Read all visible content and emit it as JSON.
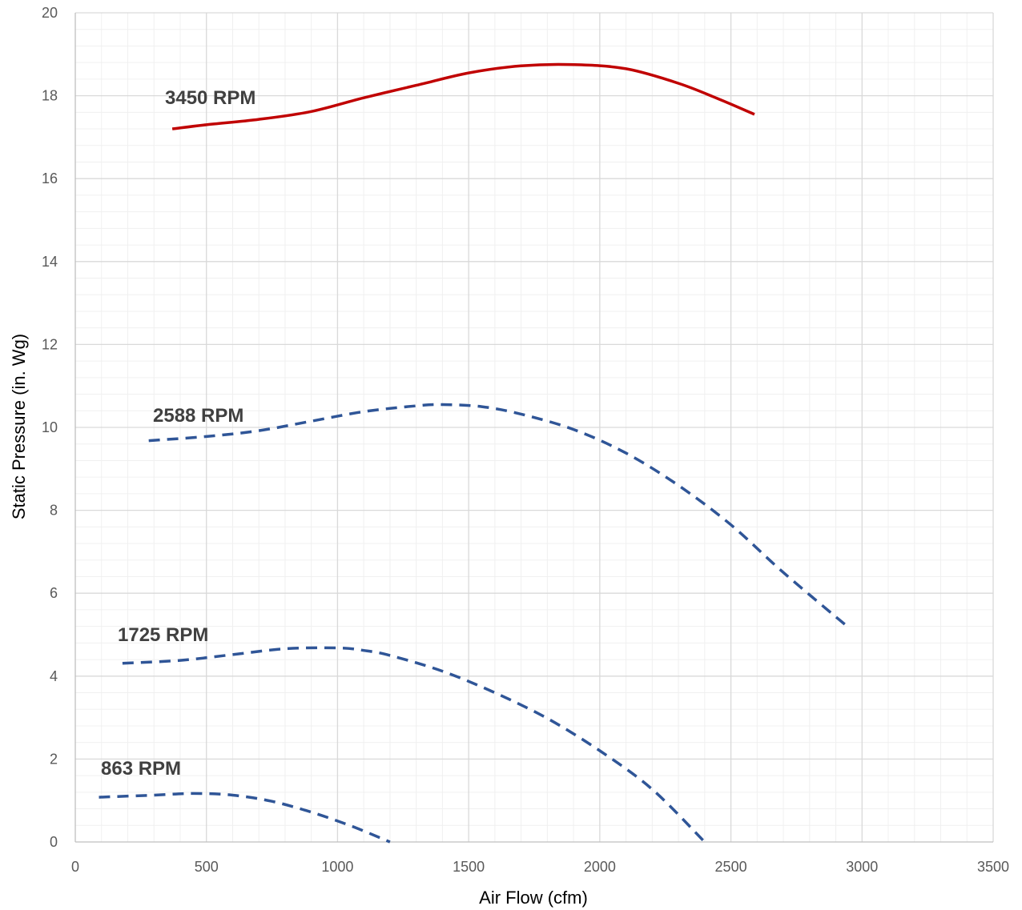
{
  "chart_data": {
    "type": "line",
    "title": "",
    "xlabel": "Air Flow (cfm)",
    "ylabel": "Static Pressure (in. Wg)",
    "xlim": [
      0,
      3500
    ],
    "ylim": [
      0,
      20
    ],
    "x_ticks": [
      "0",
      "500",
      "1000",
      "1500",
      "2000",
      "2500",
      "3000",
      "3500"
    ],
    "y_ticks": [
      "0",
      "2",
      "4",
      "6",
      "8",
      "10",
      "12",
      "14",
      "16",
      "18",
      "20"
    ],
    "grid": true,
    "minor_grid": true,
    "legend": "none",
    "series": [
      {
        "name": "3450 RPM",
        "color": "#c00000",
        "dash": "solid",
        "x": [
          370,
          500,
          700,
          900,
          1100,
          1300,
          1500,
          1700,
          1900,
          2100,
          2300,
          2450,
          2590
        ],
        "y": [
          17.2,
          17.3,
          17.43,
          17.62,
          17.95,
          18.25,
          18.55,
          18.72,
          18.75,
          18.65,
          18.3,
          17.93,
          17.55
        ]
      },
      {
        "name": "2588 RPM",
        "color": "#2f5597",
        "dash": "dashed",
        "x": [
          280,
          500,
          700,
          900,
          1100,
          1300,
          1400,
          1550,
          1700,
          1900,
          2100,
          2300,
          2500,
          2700,
          2940
        ],
        "y": [
          9.68,
          9.78,
          9.92,
          10.15,
          10.38,
          10.52,
          10.55,
          10.5,
          10.32,
          9.95,
          9.38,
          8.6,
          7.65,
          6.5,
          5.22
        ]
      },
      {
        "name": "1725 RPM",
        "color": "#2f5597",
        "dash": "dashed",
        "x": [
          180,
          400,
          600,
          800,
          1000,
          1100,
          1200,
          1400,
          1600,
          1800,
          2000,
          2200,
          2400
        ],
        "y": [
          4.31,
          4.38,
          4.52,
          4.66,
          4.68,
          4.62,
          4.5,
          4.12,
          3.6,
          2.98,
          2.2,
          1.27,
          0.0
        ]
      },
      {
        "name": "863 RPM",
        "color": "#2f5597",
        "dash": "dashed",
        "x": [
          90,
          300,
          450,
          600,
          750,
          900,
          1050,
          1200
        ],
        "y": [
          1.08,
          1.13,
          1.17,
          1.13,
          0.98,
          0.72,
          0.39,
          0.0
        ]
      }
    ]
  }
}
